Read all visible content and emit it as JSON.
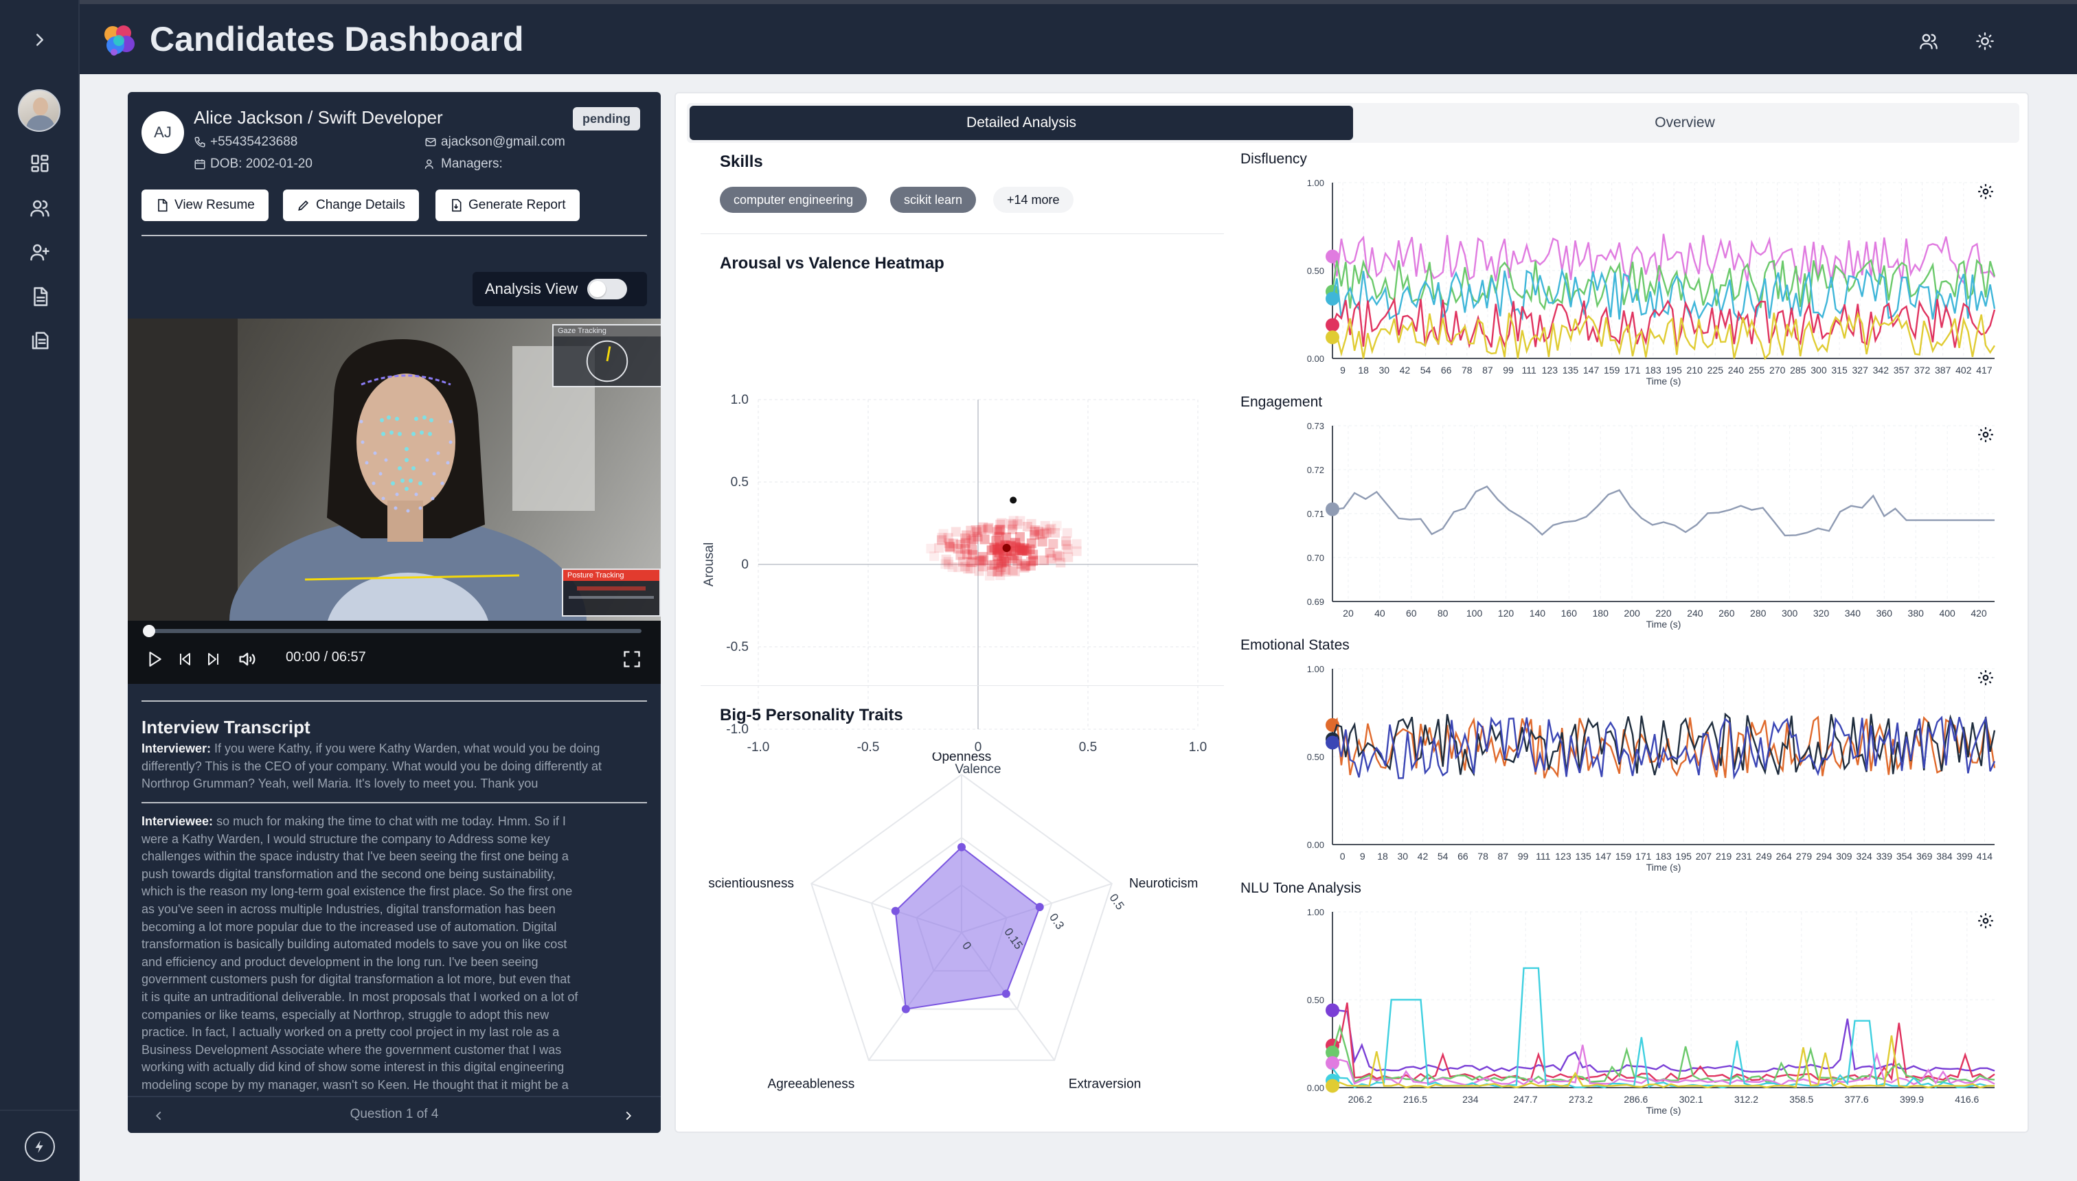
{
  "app": {
    "title": "Candidates Dashboard"
  },
  "rail": {
    "items": [
      "expand-icon",
      "user-avatar",
      "dashboard-icon",
      "users-icon",
      "add-user-icon",
      "document-icon",
      "reports-icon",
      "bolt-icon"
    ]
  },
  "candidate": {
    "initials": "AJ",
    "name_role": "Alice Jackson / Swift Developer",
    "status": "pending",
    "phone": "+55435423688",
    "email": "ajackson@gmail.com",
    "dob": "DOB: 2002-01-20",
    "managers": "Managers:"
  },
  "actions": {
    "view_resume": "View Resume",
    "change_details": "Change Details",
    "generate_report": "Generate Report"
  },
  "video": {
    "analysis_view_label": "Analysis View",
    "gaze_label": "Gaze Tracking",
    "posture_label": "Posture Tracking",
    "time": "00:00 / 06:57",
    "progress": 0
  },
  "transcript": {
    "title": "Interview Transcript",
    "interviewer_label": "Interviewer:",
    "interviewer_lines": [
      " If you were Kathy, if you were Kathy Warden, what would you be doing",
      "differently? This is the CEO of your company. What would you be doing differently at",
      "Northrop Grumman? Yeah, well Maria. It's lovely to meet you. Thank you"
    ],
    "interviewee_label": "Interviewee:",
    "interviewee_lines": [
      " so much for making the time to chat with me today. Hmm. So if I",
      "were a Kathy Warden, I would structure the company to Address some key",
      "challenges within the space industry that I've been seeing the first one being a",
      "push towards digital transformation and the second one being sustainability,",
      "which is the reason my long-term goal existence the first place. So the first one",
      "as you've seen in across multiple Industries, digital transformation has been",
      "becoming a lot more popular due to the increased use of automation. Digital",
      "transformation is basically building automated models to save you on like cost",
      "and efficiency and product development in the long run. I've been seeing",
      "government customers push for digital transformation a lot more, but even that",
      "it is quite an untraditional deliverable. In most proposals that I worked on a lot of",
      "companies or like teams, especially at Northrop, struggle to adopt this new",
      "practice. In fact, I actually worked on a pretty cool project in my last role as a",
      "Business Development Associate where the government customer that I was",
      "working with actually did kind of show some interest in this digital engineering",
      "modeling scope by my manager, wasn't so Keen. He thought that it might be a"
    ],
    "pager": "Question 1 of 4"
  },
  "tabs": {
    "detailed": "Detailed Analysis",
    "overview": "Overview",
    "active": "detailed"
  },
  "skills": {
    "title": "Skills",
    "items": [
      "computer engineering",
      "scikit learn"
    ],
    "more": "+14 more"
  },
  "charts": {
    "heatmap_title": "Arousal vs Valence Heatmap",
    "big5_title": "Big-5 Personality Traits",
    "disfluency_title": "Disfluency",
    "engagement_title": "Engagement",
    "emotional_title": "Emotional States",
    "nlu_title": "NLU Tone Analysis"
  },
  "chart_data": [
    {
      "type": "heatmap",
      "title": "Arousal vs Valence Heatmap",
      "xlabel": "Valence",
      "ylabel": "Arousal",
      "xlim": [
        -1.0,
        1.0
      ],
      "ylim": [
        -1.0,
        1.0
      ],
      "xticks": [
        "-1.0",
        "-0.5",
        "0",
        "0.5",
        "1.0"
      ],
      "yticks": [
        "1.0",
        "0.5",
        "0",
        "-0.5",
        "-1.0"
      ],
      "density_peak": {
        "valence": 0.13,
        "arousal": 0.1
      },
      "point": {
        "valence": 0.16,
        "arousal": 0.39
      }
    },
    {
      "type": "radar",
      "title": "Big-5 Personality Traits",
      "axes": [
        "Openness",
        "Neuroticism",
        "Extraversion",
        "Agreeableness",
        "Conscientiousness"
      ],
      "display_labels": [
        "Openness",
        "Neuroticism",
        "Extraversion",
        "Agreeableness",
        "scientiousness"
      ],
      "ticks": [
        "0",
        "0.15",
        "0.3",
        "0.5"
      ],
      "max": 0.5,
      "values": [
        0.27,
        0.26,
        0.24,
        0.3,
        0.22
      ]
    },
    {
      "type": "line",
      "title": "Disfluency",
      "xlabel": "Time (s)",
      "ylim": [
        0,
        1.0
      ],
      "yticks": [
        "1.00",
        "0.50",
        "0.00"
      ],
      "xticks": [
        "9",
        "18",
        "30",
        "42",
        "54",
        "66",
        "78",
        "87",
        "99",
        "111",
        "123",
        "135",
        "147",
        "159",
        "171",
        "183",
        "195",
        "210",
        "225",
        "240",
        "255",
        "270",
        "285",
        "300",
        "315",
        "327",
        "342",
        "357",
        "372",
        "387",
        "402",
        "417"
      ],
      "series": [
        {
          "color": "#e07be0",
          "start": 0.58,
          "mean": 0.57
        },
        {
          "color": "#6bc96b",
          "start": 0.38,
          "mean": 0.42
        },
        {
          "color": "#3fb6d9",
          "start": 0.34,
          "mean": 0.36
        },
        {
          "color": "#e0335f",
          "start": 0.19,
          "mean": 0.2
        },
        {
          "color": "#e0cc33",
          "start": 0.12,
          "mean": 0.12
        }
      ]
    },
    {
      "type": "line",
      "title": "Engagement",
      "xlabel": "Time (s)",
      "ylim": [
        0.69,
        0.73
      ],
      "yticks": [
        "0.73",
        "0.72",
        "0.71",
        "0.70",
        "0.69"
      ],
      "xticks": [
        "20",
        "40",
        "60",
        "80",
        "100",
        "120",
        "140",
        "160",
        "180",
        "200",
        "220",
        "240",
        "260",
        "280",
        "300",
        "320",
        "340",
        "360",
        "380",
        "400",
        "420"
      ],
      "series": [
        {
          "color": "#8f9bb3",
          "start": 0.711
        }
      ]
    },
    {
      "type": "line",
      "title": "Emotional States",
      "xlabel": "Time (s)",
      "ylim": [
        0,
        1.0
      ],
      "yticks": [
        "1.00",
        "0.50",
        "0.00"
      ],
      "xticks": [
        "0",
        "9",
        "18",
        "30",
        "42",
        "54",
        "66",
        "78",
        "87",
        "99",
        "111",
        "123",
        "135",
        "147",
        "159",
        "171",
        "183",
        "195",
        "207",
        "219",
        "231",
        "249",
        "264",
        "279",
        "294",
        "309",
        "324",
        "339",
        "354",
        "369",
        "384",
        "399",
        "414"
      ],
      "series": [
        {
          "color": "#e06a2c",
          "start": 0.68,
          "mean": 0.55
        },
        {
          "color": "#1f2d3d",
          "start": 0.6,
          "mean": 0.57
        },
        {
          "color": "#3b46b5",
          "start": 0.58,
          "mean": 0.55
        }
      ]
    },
    {
      "type": "line",
      "title": "NLU Tone Analysis",
      "xlabel": "Time (s)",
      "ylim": [
        0,
        1.0
      ],
      "yticks": [
        "1.00",
        "0.50",
        "0.00"
      ],
      "xticks": [
        "206.2",
        "216.5",
        "234",
        "247.7",
        "273.2",
        "286.6",
        "302.1",
        "312.2",
        "358.5",
        "377.6",
        "399.9",
        "416.6"
      ],
      "series": [
        {
          "color": "#7a3fd6",
          "start": 0.44
        },
        {
          "color": "#e0335f",
          "start": 0.24
        },
        {
          "color": "#6bc96b",
          "start": 0.2
        },
        {
          "color": "#e07be0",
          "start": 0.14
        },
        {
          "color": "#3fd0e0",
          "start": 0.04
        },
        {
          "color": "#e0cc33",
          "start": 0.01
        }
      ]
    }
  ]
}
